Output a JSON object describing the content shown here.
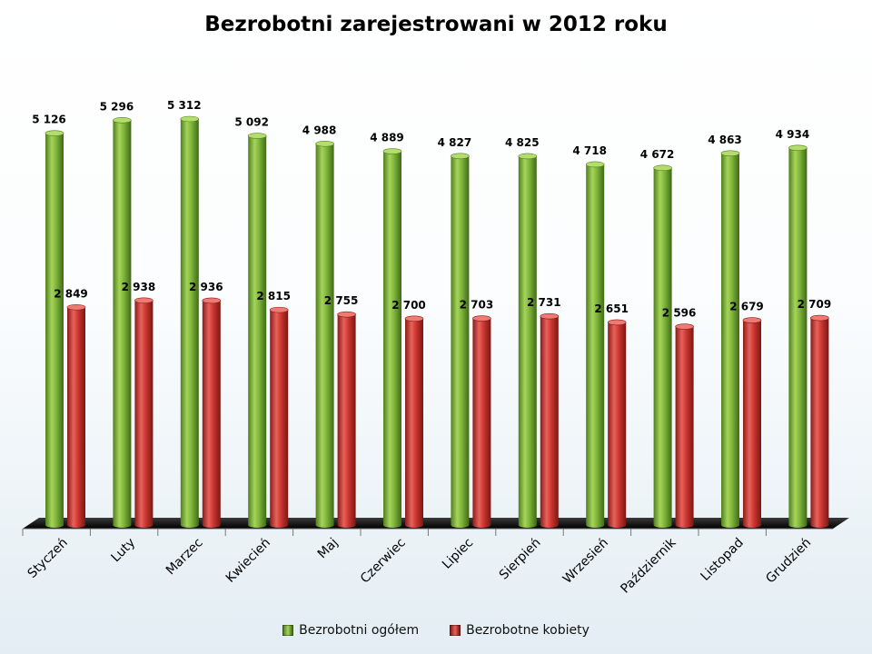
{
  "chart_data": {
    "type": "bar",
    "title": "Bezrobotni zarejestrowani w 2012 roku",
    "categories": [
      "Styczeń",
      "Luty",
      "Marzec",
      "Kwiecień",
      "Maj",
      "Czerwiec",
      "Lipiec",
      "Sierpień",
      "Wrzesień",
      "Październik",
      "Listopad",
      "Grudzień"
    ],
    "series": [
      {
        "name": "Bezrobotni ogółem",
        "color": "#7cb33a",
        "values": [
          5126,
          5296,
          5312,
          5092,
          4988,
          4889,
          4827,
          4825,
          4718,
          4672,
          4863,
          4934
        ],
        "labels": [
          "5 126",
          "5 296",
          "5 312",
          "5 092",
          "4 988",
          "4 889",
          "4 827",
          "4 825",
          "4 718",
          "4 672",
          "4 863",
          "4 934"
        ]
      },
      {
        "name": "Bezrobotne kobiety",
        "color": "#d23a35",
        "values": [
          2849,
          2938,
          2936,
          2815,
          2755,
          2700,
          2703,
          2731,
          2651,
          2596,
          2679,
          2709
        ],
        "labels": [
          "2 849",
          "2 938",
          "2 936",
          "2 815",
          "2 755",
          "2 700",
          "2 703",
          "2 731",
          "2 651",
          "2 596",
          "2 679",
          "2 709"
        ]
      }
    ],
    "ylim": [
      0,
      5312
    ],
    "grid": false,
    "legend": "bottom",
    "style": "3d-cylinder"
  }
}
